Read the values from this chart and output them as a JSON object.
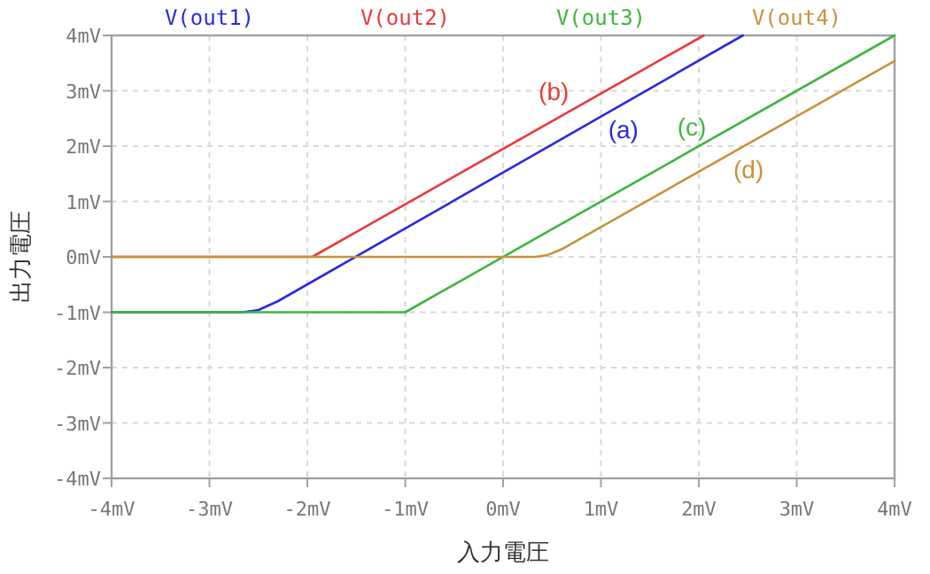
{
  "chart_data": {
    "type": "line",
    "xlabel": "入力電圧",
    "ylabel": "出力電圧",
    "xlim": [
      -4,
      4
    ],
    "ylim": [
      -4,
      4
    ],
    "xticks": [
      {
        "value": -4,
        "label": "-4mV"
      },
      {
        "value": -3,
        "label": "-3mV"
      },
      {
        "value": -2,
        "label": "-2mV"
      },
      {
        "value": -1,
        "label": "-1mV"
      },
      {
        "value": 0,
        "label": "0mV"
      },
      {
        "value": 1,
        "label": "1mV"
      },
      {
        "value": 2,
        "label": "2mV"
      },
      {
        "value": 3,
        "label": "3mV"
      },
      {
        "value": 4,
        "label": "4mV"
      }
    ],
    "yticks": [
      {
        "value": -4,
        "label": "-4mV"
      },
      {
        "value": -3,
        "label": "-3mV"
      },
      {
        "value": -2,
        "label": "-2mV"
      },
      {
        "value": -1,
        "label": "-1mV"
      },
      {
        "value": 0,
        "label": "0mV"
      },
      {
        "value": 1,
        "label": "1mV"
      },
      {
        "value": 2,
        "label": "2mV"
      },
      {
        "value": 3,
        "label": "3mV"
      },
      {
        "value": 4,
        "label": "4mV"
      }
    ],
    "grid": true,
    "legend": "top",
    "marker": "none",
    "line_style": "solid",
    "series": [
      {
        "name": "V(out1)",
        "color": "#2a2ae0",
        "x": [
          -4,
          -2.66,
          -2.5,
          -2.3,
          2.45
        ],
        "values": [
          -1,
          -1,
          -0.96,
          -0.8,
          4
        ]
      },
      {
        "name": "V(out2)",
        "color": "#e83a3a",
        "x": [
          -4,
          -1.95,
          2.05
        ],
        "values": [
          0,
          0,
          4
        ]
      },
      {
        "name": "V(out3)",
        "color": "#3cb63c",
        "x": [
          -4,
          -1,
          4
        ],
        "values": [
          -1,
          -1,
          4
        ]
      },
      {
        "name": "V(out4)",
        "color": "#c8923a",
        "x": [
          -4,
          0.33,
          0.45,
          0.6,
          4
        ],
        "values": [
          0,
          0,
          0.03,
          0.14,
          3.54
        ]
      }
    ],
    "annotations": [
      "(a)",
      "(b)",
      "(c)",
      "(d)"
    ]
  }
}
